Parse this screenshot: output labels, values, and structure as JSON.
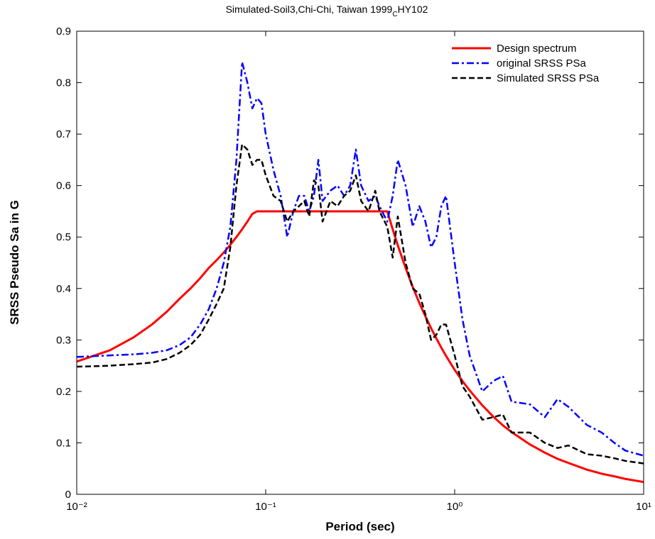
{
  "chart_data": {
    "type": "line",
    "title": [
      "Simulated-Soil3,Chi-Chi, Taiwan 1999",
      "C",
      "HY102"
    ],
    "x_label": "Period (sec)",
    "y_label": "SRSS Pseudo Sa in G",
    "x_scale": "log",
    "legend": "upper-right",
    "grid": false,
    "xlim": [
      0.01,
      10
    ],
    "xticks": [
      {
        "value": 0.01,
        "label": "10⁻²"
      },
      {
        "value": 0.1,
        "label": "10⁻¹"
      },
      {
        "value": 1,
        "label": "10⁰"
      },
      {
        "value": 10,
        "label": "10¹"
      }
    ],
    "ylim": [
      0,
      0.9
    ],
    "yticks": [
      0,
      0.1,
      0.2,
      0.3,
      0.4,
      0.5,
      0.6,
      0.7,
      0.8,
      0.9
    ],
    "x": [
      0.01,
      0.015,
      0.02,
      0.025,
      0.03,
      0.035,
      0.04,
      0.045,
      0.05,
      0.055,
      0.06,
      0.065,
      0.07,
      0.075,
      0.08,
      0.085,
      0.09,
      0.095,
      0.1,
      0.11,
      0.12,
      0.13,
      0.14,
      0.15,
      0.16,
      0.17,
      0.18,
      0.19,
      0.2,
      0.22,
      0.24,
      0.26,
      0.28,
      0.3,
      0.32,
      0.35,
      0.38,
      0.4,
      0.44,
      0.47,
      0.5,
      0.55,
      0.6,
      0.65,
      0.7,
      0.75,
      0.8,
      0.85,
      0.9,
      1.0,
      1.1,
      1.2,
      1.4,
      1.6,
      1.8,
      2.0,
      2.5,
      3.0,
      3.5,
      4.0,
      5.0,
      6.0,
      7.0,
      8.0,
      10
    ],
    "series": [
      {
        "name": "Design spectrum",
        "color": "#ff0000",
        "dash": "solid",
        "values": [
          0.258,
          0.28,
          0.305,
          0.33,
          0.355,
          0.38,
          0.4,
          0.42,
          0.44,
          0.455,
          0.47,
          0.485,
          0.5,
          0.515,
          0.53,
          0.545,
          0.55,
          0.55,
          0.55,
          0.55,
          0.55,
          0.55,
          0.55,
          0.55,
          0.55,
          0.55,
          0.55,
          0.55,
          0.55,
          0.55,
          0.55,
          0.55,
          0.55,
          0.55,
          0.55,
          0.55,
          0.55,
          0.55,
          0.55,
          0.515,
          0.484,
          0.44,
          0.403,
          0.372,
          0.346,
          0.323,
          0.303,
          0.285,
          0.269,
          0.242,
          0.22,
          0.202,
          0.173,
          0.151,
          0.134,
          0.121,
          0.097,
          0.081,
          0.069,
          0.061,
          0.048,
          0.04,
          0.035,
          0.03,
          0.024
        ]
      },
      {
        "name": "original SRSS PSa",
        "color": "#0000ff",
        "dash": "dashdot",
        "values": [
          0.267,
          0.27,
          0.272,
          0.275,
          0.28,
          0.29,
          0.305,
          0.33,
          0.36,
          0.4,
          0.45,
          0.52,
          0.65,
          0.84,
          0.8,
          0.75,
          0.77,
          0.76,
          0.7,
          0.63,
          0.58,
          0.5,
          0.55,
          0.58,
          0.58,
          0.55,
          0.58,
          0.65,
          0.57,
          0.59,
          0.6,
          0.58,
          0.6,
          0.67,
          0.6,
          0.57,
          0.58,
          0.56,
          0.53,
          0.58,
          0.65,
          0.6,
          0.52,
          0.56,
          0.53,
          0.48,
          0.5,
          0.56,
          0.58,
          0.45,
          0.34,
          0.27,
          0.2,
          0.22,
          0.23,
          0.18,
          0.175,
          0.15,
          0.185,
          0.17,
          0.135,
          0.12,
          0.1,
          0.085,
          0.075
        ]
      },
      {
        "name": "Simulated SRSS PSa",
        "color": "#000000",
        "dash": "dashed",
        "values": [
          0.248,
          0.25,
          0.253,
          0.256,
          0.263,
          0.275,
          0.29,
          0.31,
          0.34,
          0.37,
          0.4,
          0.48,
          0.6,
          0.68,
          0.67,
          0.64,
          0.65,
          0.65,
          0.62,
          0.58,
          0.57,
          0.53,
          0.55,
          0.56,
          0.57,
          0.54,
          0.61,
          0.6,
          0.53,
          0.57,
          0.56,
          0.58,
          0.59,
          0.62,
          0.57,
          0.55,
          0.59,
          0.55,
          0.52,
          0.46,
          0.54,
          0.45,
          0.4,
          0.39,
          0.35,
          0.3,
          0.31,
          0.33,
          0.33,
          0.27,
          0.21,
          0.19,
          0.145,
          0.15,
          0.155,
          0.12,
          0.12,
          0.1,
          0.09,
          0.095,
          0.078,
          0.075,
          0.07,
          0.065,
          0.06
        ]
      }
    ]
  }
}
